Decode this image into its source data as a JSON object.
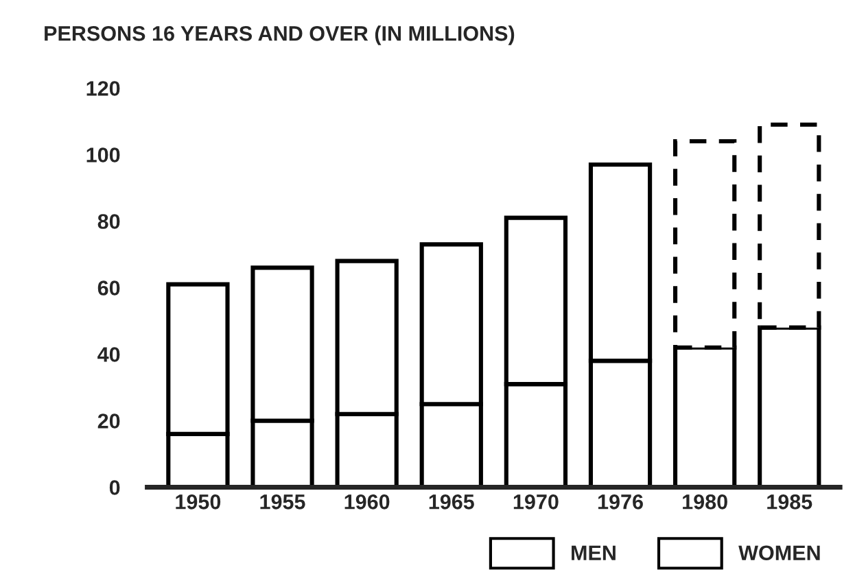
{
  "chart_data": {
    "type": "bar",
    "title": "PERSONS 16 YEARS AND OVER (IN MILLIONS)",
    "stacked": true,
    "categories": [
      "1950",
      "1955",
      "1960",
      "1965",
      "1970",
      "1976",
      "1980",
      "1985"
    ],
    "series": [
      {
        "name": "WOMEN",
        "color": "#ffffff",
        "values": [
          16,
          20,
          22,
          25,
          31,
          38,
          42,
          48
        ]
      },
      {
        "name": "MEN",
        "color": "#ffffff",
        "values": [
          45,
          46,
          46,
          48,
          50,
          59,
          null,
          null
        ]
      },
      {
        "color": "#ffffff",
        "line_style": "dashed",
        "values": [
          null,
          null,
          null,
          null,
          null,
          null,
          62,
          61
        ]
      }
    ],
    "ylim": [
      0,
      120
    ],
    "yticks": [
      0,
      20,
      40,
      60,
      80,
      100,
      120
    ],
    "grid": false,
    "legend": "bottom right"
  }
}
